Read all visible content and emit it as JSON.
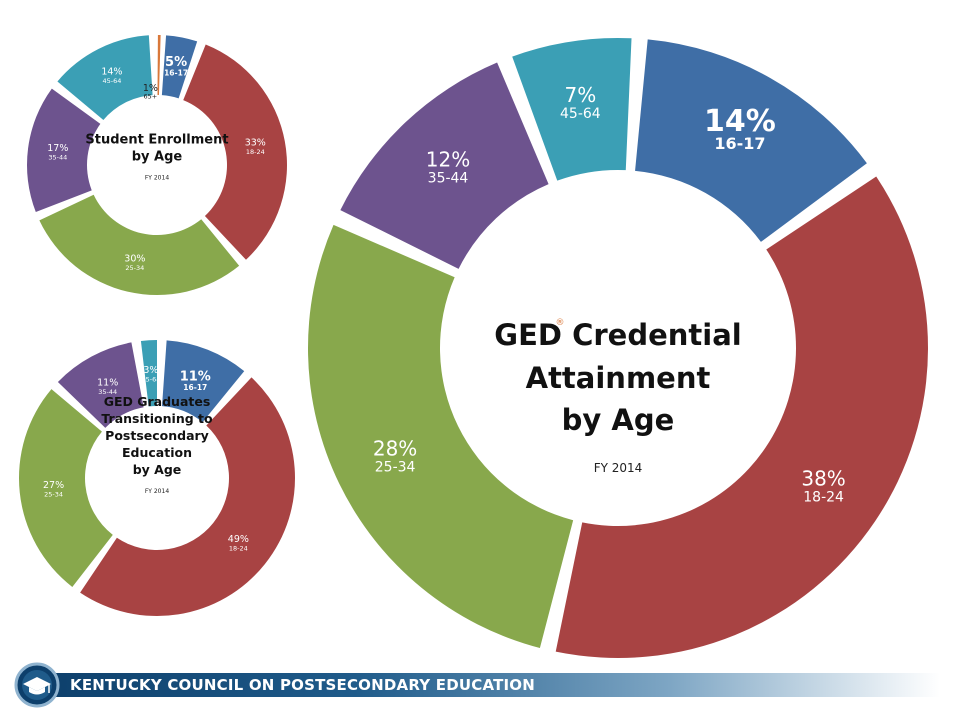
{
  "chart_data": [
    {
      "type": "donut",
      "title": [
        "Student Enrollment",
        "by Age"
      ],
      "subtitle": "FY 2014",
      "categories": [
        "16-17",
        "18-24",
        "25-34",
        "35-44",
        "45-64",
        "65+"
      ],
      "values": [
        5,
        33,
        30,
        17,
        14,
        1
      ],
      "labels": [
        "5%",
        "33%",
        "30%",
        "17%",
        "14%",
        "1%"
      ],
      "colors": [
        "#3f6ea6",
        "#a84343",
        "#88a84c",
        "#6d538e",
        "#3b9fb5",
        "#d9783a"
      ]
    },
    {
      "type": "donut",
      "title": [
        "GED Graduates",
        "Transitioning to",
        "Postsecondary",
        "Education",
        "by Age"
      ],
      "subtitle": "FY 2014",
      "categories": [
        "16-17",
        "18-24",
        "25-34",
        "35-44",
        "45-64"
      ],
      "values": [
        11,
        49,
        27,
        11,
        3
      ],
      "labels": [
        "11%",
        "49%",
        "27%",
        "11%",
        "3%"
      ],
      "colors": [
        "#3f6ea6",
        "#a84343",
        "#88a84c",
        "#6d538e",
        "#3b9fb5"
      ]
    },
    {
      "type": "donut",
      "title": [
        "GED",
        "Credential",
        "Attainment",
        "by Age"
      ],
      "registered_mark": "®",
      "subtitle": "FY 2014",
      "categories": [
        "16-17",
        "18-24",
        "25-34",
        "35-44",
        "45-64"
      ],
      "values": [
        14,
        38,
        28,
        12,
        7
      ],
      "labels": [
        "14%",
        "38%",
        "28%",
        "12%",
        "7%"
      ],
      "colors": [
        "#3f6ea6",
        "#a84343",
        "#88a84c",
        "#6d538e",
        "#3b9fb5"
      ]
    }
  ],
  "footer": {
    "organization": "KENTUCKY COUNCIL ON POSTSECONDARY EDUCATION"
  }
}
